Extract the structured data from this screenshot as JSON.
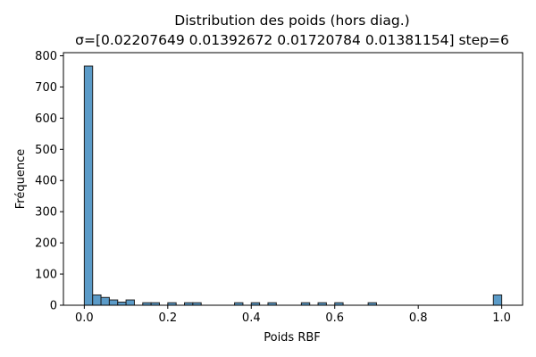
{
  "chart_data": {
    "type": "bar",
    "title": "Distribution des poids (hors diag.)",
    "subtitle": "σ=[0.02207649 0.01392672 0.01720784 0.01381154] step=6",
    "xlabel": "Poids RBF",
    "ylabel": "Fréquence",
    "xlim": [
      -0.05,
      1.05
    ],
    "ylim": [
      0,
      810
    ],
    "xticks": [
      "0.0",
      "0.2",
      "0.4",
      "0.6",
      "0.8",
      "1.0"
    ],
    "yticks": [
      "0",
      "100",
      "200",
      "300",
      "400",
      "500",
      "600",
      "700",
      "800"
    ],
    "bar_color": "#5b9bc8",
    "bar_edge_color": "#1f1f1f",
    "bins": [
      {
        "x0": 0.0,
        "x1": 0.02,
        "count": 767
      },
      {
        "x0": 0.02,
        "x1": 0.04,
        "count": 33
      },
      {
        "x0": 0.04,
        "x1": 0.06,
        "count": 25
      },
      {
        "x0": 0.06,
        "x1": 0.08,
        "count": 17
      },
      {
        "x0": 0.08,
        "x1": 0.1,
        "count": 10
      },
      {
        "x0": 0.1,
        "x1": 0.12,
        "count": 17
      },
      {
        "x0": 0.14,
        "x1": 0.16,
        "count": 8
      },
      {
        "x0": 0.16,
        "x1": 0.18,
        "count": 8
      },
      {
        "x0": 0.2,
        "x1": 0.22,
        "count": 8
      },
      {
        "x0": 0.24,
        "x1": 0.26,
        "count": 8
      },
      {
        "x0": 0.26,
        "x1": 0.28,
        "count": 8
      },
      {
        "x0": 0.36,
        "x1": 0.38,
        "count": 8
      },
      {
        "x0": 0.4,
        "x1": 0.42,
        "count": 8
      },
      {
        "x0": 0.44,
        "x1": 0.46,
        "count": 8
      },
      {
        "x0": 0.52,
        "x1": 0.54,
        "count": 8
      },
      {
        "x0": 0.56,
        "x1": 0.58,
        "count": 8
      },
      {
        "x0": 0.6,
        "x1": 0.62,
        "count": 8
      },
      {
        "x0": 0.68,
        "x1": 0.7,
        "count": 8
      },
      {
        "x0": 0.98,
        "x1": 1.0,
        "count": 33
      }
    ]
  }
}
